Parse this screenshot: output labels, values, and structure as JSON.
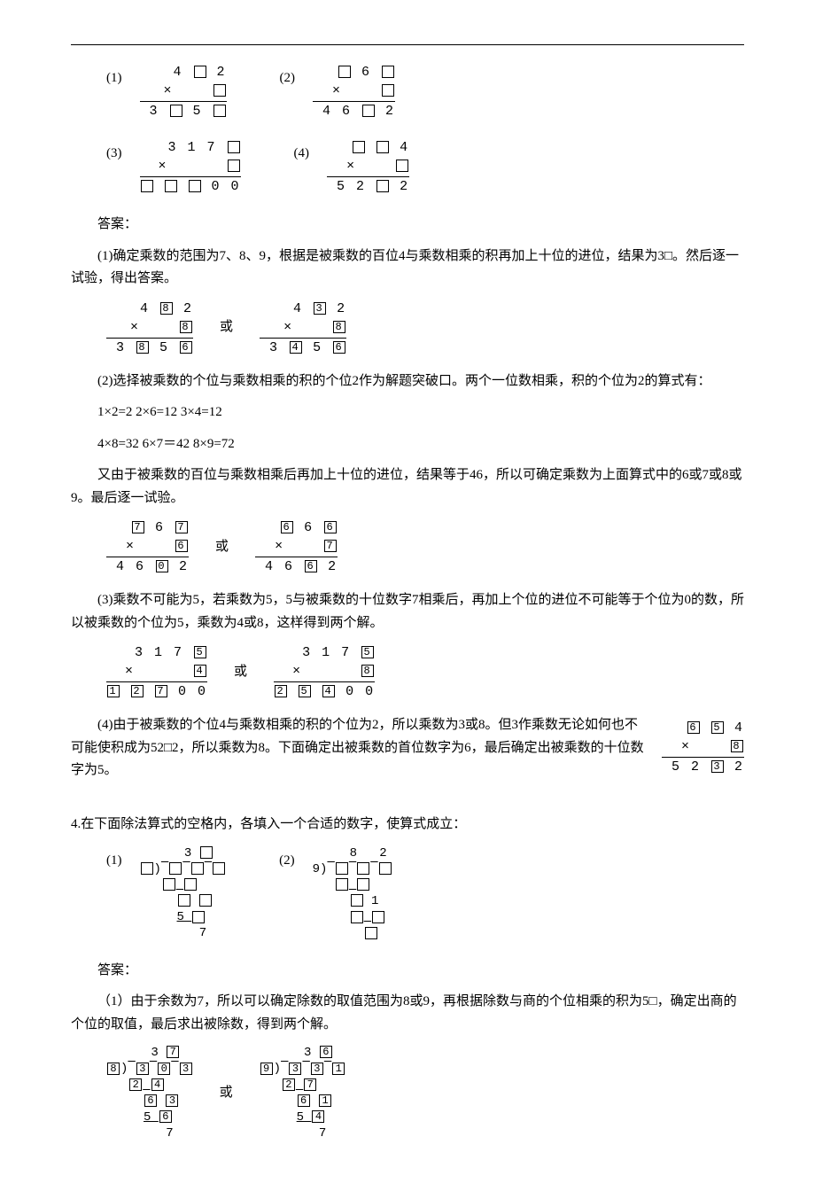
{
  "section_answer_label": "答案：",
  "section_or_label": "或",
  "problem3": {
    "answer1": "(1)确定乘数的范围为7、8、9，根据是被乘数的百位4与乘数相乘的积再加上十位的进位，结果为3□。然后逐一试验，得出答案。",
    "answer2_intro": "(2)选择被乘数的个位与乘数相乘的积的个位2作为解题突破口。两个一位数相乘，积的个位为2的算式有：",
    "answer2_equations": "1×2=2 2×6=12 3×4=12",
    "answer2_equations2": "4×8=32 6×7＝42 8×9=72",
    "answer2_conclusion": "又由于被乘数的百位与乘数相乘后再加上十位的进位，结果等于46，所以可确定乘数为上面算式中的6或7或8或9。最后逐一试验。",
    "answer3": "(3)乘数不可能为5，若乘数为5，5与被乘数的十位数字7相乘后，再加上个位的进位不可能等于个位为0的数，所以被乘数的个位为5，乘数为4或8，这样得到两个解。",
    "answer4": "(4)由于被乘数的个位4与乘数相乘的积的个位为2，所以乘数为3或8。但3作乘数无论如何也不可能使积成为52□2，所以乘数为8。下面确定出被乘数的首位数字为6，最后确定出被乘数的十位数字为5。"
  },
  "problem4": {
    "title": "4.在下面除法算式的空格内，各填入一个合适的数字，使算式成立：",
    "answer1": "（1）由于余数为7，所以可以确定除数的取值范围为8或9，再根据除数与商的个位相乘的积为5□，确定出商的个位的取值，最后求出被除数，得到两个解。"
  }
}
